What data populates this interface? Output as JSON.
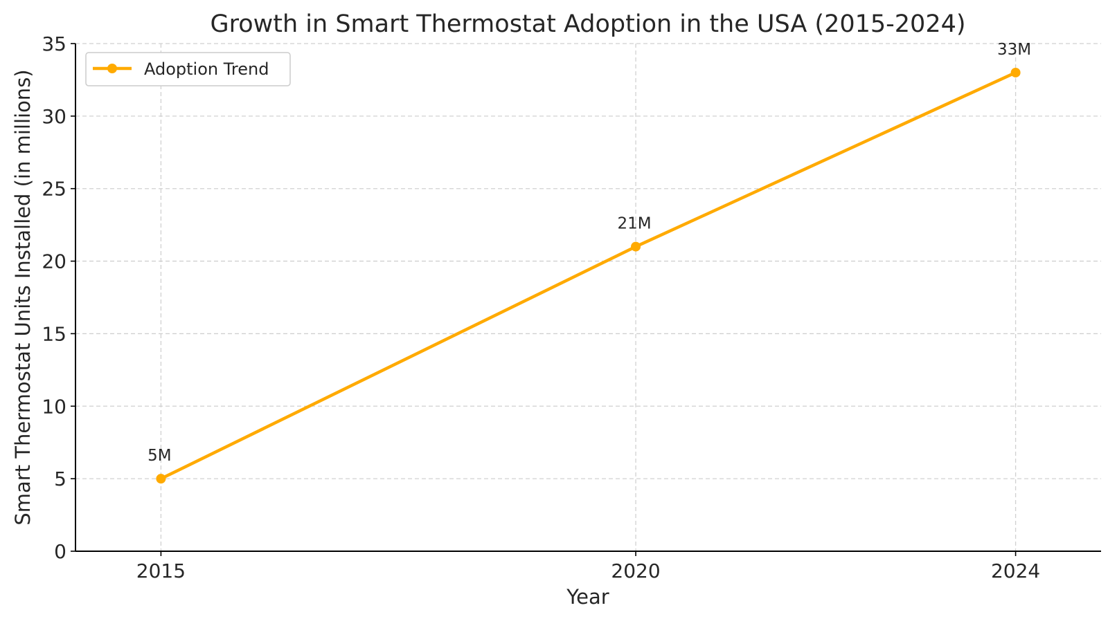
{
  "chart_data": {
    "type": "line",
    "title": "Growth in Smart Thermostat Adoption in the USA (2015-2024)",
    "xlabel": "Year",
    "ylabel": "Smart Thermostat Units Installed (in millions)",
    "x": [
      2015,
      2020,
      2024
    ],
    "x_tick_labels": [
      "2015",
      "2020",
      "2024"
    ],
    "y_ticks": [
      0,
      5,
      10,
      15,
      20,
      25,
      30,
      35
    ],
    "ylim": [
      0,
      35
    ],
    "xlim": [
      2014.1,
      2024.9
    ],
    "grid": true,
    "legend_position": "top-left",
    "series": [
      {
        "name": "Adoption Trend",
        "values": [
          5,
          21,
          33
        ],
        "data_labels": [
          "5M",
          "21M",
          "33M"
        ],
        "color": "#FFAA00",
        "marker": "circle"
      }
    ]
  }
}
